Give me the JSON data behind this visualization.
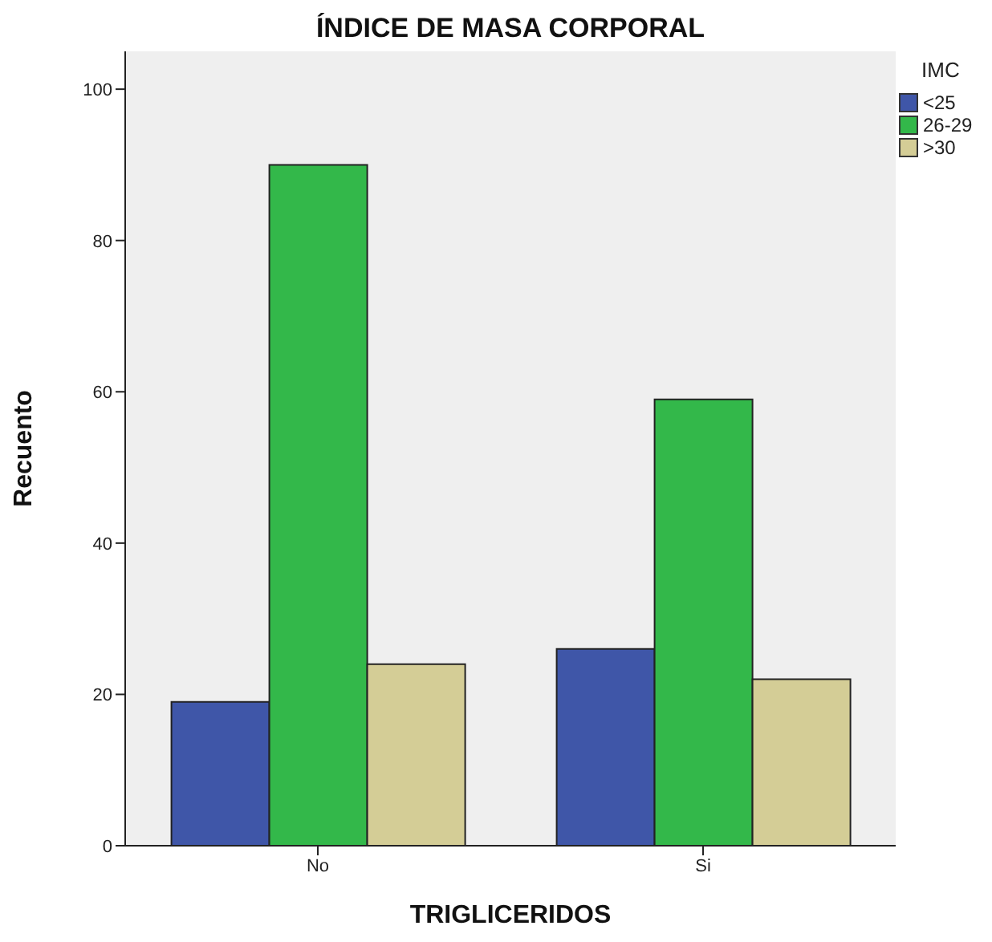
{
  "chart_data": {
    "type": "bar",
    "title": "ÍNDICE DE MASA CORPORAL",
    "xlabel": "TRIGLICERIDOS",
    "ylabel": "Recuento",
    "legend_title": "IMC",
    "categories": [
      "No",
      "Si"
    ],
    "series": [
      {
        "name": "<25",
        "color": "#3f56a8",
        "values": [
          19,
          26
        ]
      },
      {
        "name": "26-29",
        "color": "#33b84a",
        "values": [
          90,
          59
        ]
      },
      {
        "name": ">30",
        "color": "#d4cd96",
        "values": [
          24,
          22
        ]
      }
    ],
    "ylim": [
      0,
      105
    ],
    "yticks": [
      0,
      20,
      40,
      60,
      80,
      100
    ],
    "grid": false,
    "legend": "top right"
  }
}
